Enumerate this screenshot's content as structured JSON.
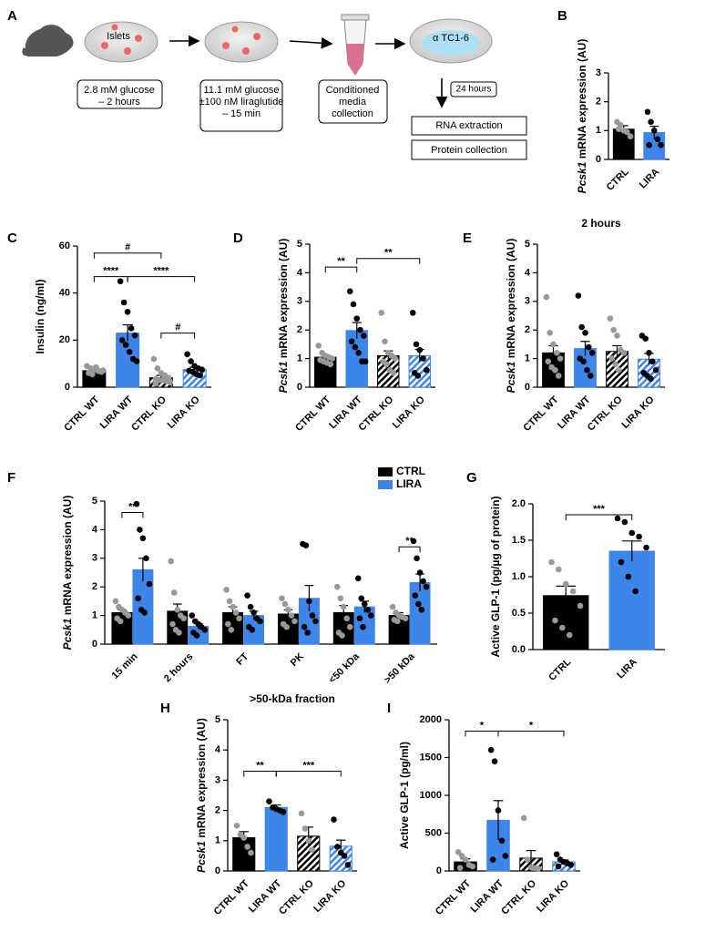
{
  "diagram": {
    "label": "A",
    "dish1": "Islets",
    "step1": [
      "2.8 mM glucose",
      "– 2 hours"
    ],
    "step2": [
      "11.1 mM glucose",
      "±100 nM liraglutide",
      "– 15 min"
    ],
    "step3": [
      "Conditioned",
      "media",
      "collection"
    ],
    "dish3": "α TC1-6",
    "wait": "24 hours",
    "out": [
      "RNA extraction",
      "Protein collection"
    ]
  },
  "chart_data": [
    {
      "type": "bar",
      "label": "B",
      "ylabel_italic": "Pcsk1",
      "ylabel": "mRNA expression (AU)",
      "categories": [
        "CTRL",
        "LIRA"
      ],
      "values": [
        1.05,
        0.93
      ],
      "errors": [
        0.12,
        0.22
      ],
      "colors": [
        "#000000",
        "#3d85e8"
      ],
      "hatched": [
        false,
        false
      ],
      "point_colors": [
        "#999999",
        "#000000"
      ],
      "points": [
        [
          1.3,
          1.2,
          1.0,
          0.95,
          0.8,
          1.05
        ],
        [
          1.65,
          1.3,
          1.0,
          0.7,
          0.5,
          0.5
        ]
      ],
      "ylim": [
        0,
        3
      ],
      "yticks": [
        0,
        1,
        2,
        3
      ],
      "annotations": []
    },
    {
      "type": "bar",
      "label": "C",
      "ylabel": "Insulin (ng/ml)",
      "categories": [
        "CTRL WT",
        "LIRA WT",
        "CTRL KO",
        "LIRA KO"
      ],
      "values": [
        7,
        23,
        4,
        7.5
      ],
      "errors": [
        1,
        3.5,
        1,
        1
      ],
      "colors": [
        "#000000",
        "#3d85e8",
        "#000000",
        "#3d85e8"
      ],
      "hatched": [
        false,
        false,
        true,
        true
      ],
      "point_colors": [
        "#999999",
        "#000000",
        "#999999",
        "#000000"
      ],
      "points": [
        [
          9,
          8,
          7.5,
          7,
          6.5,
          6,
          5.5,
          8.5,
          6.8,
          7.2
        ],
        [
          45,
          36,
          32,
          25,
          22,
          20,
          18,
          15,
          12,
          11
        ],
        [
          12,
          8,
          6,
          5,
          4,
          3.5,
          3,
          3,
          2.5,
          2,
          1.5
        ],
        [
          14,
          11,
          9,
          8,
          7.5,
          7,
          6.5,
          5.5,
          5
        ]
      ],
      "ylim": [
        0,
        60
      ],
      "yticks": [
        0,
        20,
        40,
        60
      ],
      "annotations": [
        {
          "from": 0,
          "to": 2,
          "y": 57,
          "text": "#"
        },
        {
          "from": 0,
          "to": 1,
          "y": 47,
          "text": "****"
        },
        {
          "from": 1,
          "to": 3,
          "y": 47,
          "text": "****"
        },
        {
          "from": 2,
          "to": 3,
          "y": 23,
          "text": "#"
        }
      ]
    },
    {
      "type": "bar",
      "label": "D",
      "ylabel_italic": "Pcsk1",
      "ylabel": "mRNA expression (AU)",
      "categories": [
        "CTRL WT",
        "LIRA WT",
        "CTRL KO",
        "LIRA KO"
      ],
      "values": [
        1.05,
        1.98,
        1.1,
        1.1
      ],
      "errors": [
        0.08,
        0.28,
        0.17,
        0.22
      ],
      "colors": [
        "#000000",
        "#3d85e8",
        "#000000",
        "#3d85e8"
      ],
      "hatched": [
        false,
        false,
        true,
        true
      ],
      "point_colors": [
        "#999999",
        "#000000",
        "#999999",
        "#000000"
      ],
      "points": [
        [
          1.45,
          1.2,
          1.1,
          1.05,
          1,
          0.95,
          0.9,
          0.85,
          0.8
        ],
        [
          3.35,
          2.9,
          2.4,
          2.0,
          1.8,
          1.6,
          1.4,
          1.2,
          0.9,
          0.9
        ],
        [
          2.6,
          1.6,
          1.2,
          1.1,
          1.0,
          0.9,
          0.8,
          0.6,
          0.5
        ],
        [
          2.6,
          1.5,
          1.3,
          1.0,
          0.6,
          0.5,
          0.4
        ]
      ],
      "ylim": [
        0,
        5
      ],
      "yticks": [
        0,
        1,
        2,
        3,
        4,
        5
      ],
      "annotations": [
        {
          "from": 0,
          "to": 1,
          "y": 4.2,
          "text": "**"
        },
        {
          "from": 1,
          "to": 3,
          "y": 4.5,
          "text": "**"
        }
      ]
    },
    {
      "type": "bar",
      "label": "E",
      "title": "2 hours",
      "ylabel_italic": "Pcsk1",
      "ylabel": "mRNA expression (AU)",
      "categories": [
        "CTRL WT",
        "LIRA WT",
        "CTRL KO",
        "LIRA KO"
      ],
      "values": [
        1.2,
        1.35,
        1.25,
        0.98
      ],
      "errors": [
        0.25,
        0.25,
        0.2,
        0.2
      ],
      "colors": [
        "#000000",
        "#3d85e8",
        "#000000",
        "#3d85e8"
      ],
      "hatched": [
        false,
        false,
        true,
        true
      ],
      "point_colors": [
        "#999999",
        "#000000",
        "#999999",
        "#000000"
      ],
      "points": [
        [
          3.15,
          1.9,
          1.5,
          1.2,
          1.0,
          0.9,
          0.7,
          0.6,
          0.4
        ],
        [
          3.2,
          2.1,
          1.9,
          1.4,
          1.2,
          1.0,
          0.9,
          0.6,
          0.4
        ],
        [
          2.4,
          2.0,
          1.8,
          1.3,
          1.2,
          1.0,
          0.8,
          0.6
        ],
        [
          1.8,
          1.7,
          1.2,
          0.9,
          0.6,
          0.5,
          0.4,
          0.3
        ]
      ],
      "ylim": [
        0,
        5
      ],
      "yticks": [
        0,
        1,
        2,
        3,
        4,
        5
      ],
      "annotations": []
    },
    {
      "type": "grouped_bar",
      "label": "F",
      "ylabel_italic": "Pcsk1",
      "ylabel": "mRNA expression (AU)",
      "categories": [
        "15 min",
        "2 hours",
        "FT",
        "PK",
        "<50 kDa",
        ">50 kDa"
      ],
      "legend": "top-right",
      "series": [
        {
          "name": "CTRL",
          "color": "#000000",
          "point_color": "#999999",
          "values": [
            1.1,
            1.15,
            1.1,
            1.05,
            1.1,
            1.0
          ],
          "errors": [
            0.1,
            0.25,
            0.2,
            0.15,
            0.25,
            0.1
          ],
          "points": [
            [
              1.5,
              1.3,
              1.2,
              1.1,
              1.0,
              0.9,
              0.8
            ],
            [
              2.9,
              1.8,
              1.2,
              1.0,
              0.9,
              0.7,
              0.5,
              0.4
            ],
            [
              1.9,
              1.5,
              1.3,
              1.1,
              0.9,
              0.7,
              0.5
            ],
            [
              1.6,
              1.4,
              1.2,
              1.0,
              0.8,
              0.7,
              0.6
            ],
            [
              2.0,
              1.6,
              1.3,
              0.9,
              0.6,
              0.4,
              0.3
            ],
            [
              1.3,
              1.1,
              1.0,
              0.95,
              0.9,
              0.85,
              0.8
            ]
          ]
        },
        {
          "name": "LIRA",
          "color": "#3d85e8",
          "point_color": "#000000",
          "values": [
            2.6,
            0.62,
            1.0,
            1.6,
            1.3,
            2.15
          ],
          "errors": [
            0.4,
            0.1,
            0.15,
            0.45,
            0.2,
            0.3
          ],
          "points": [
            [
              4.9,
              4.0,
              3.7,
              3.0,
              2.1,
              1.6,
              1.2,
              1.1
            ],
            [
              1.0,
              0.8,
              0.7,
              0.6,
              0.5,
              0.4,
              0.3
            ],
            [
              1.7,
              1.3,
              1.1,
              0.9,
              0.8,
              0.6,
              0.5
            ],
            [
              3.5,
              3.45,
              1.5,
              1.0,
              0.8,
              0.6,
              0.4
            ],
            [
              2.3,
              1.6,
              1.4,
              1.2,
              1.0,
              0.9,
              0.6
            ],
            [
              3.6,
              3.0,
              2.5,
              2.2,
              2.0,
              1.7,
              1.4,
              1.2
            ]
          ]
        }
      ],
      "ylim": [
        0,
        5
      ],
      "yticks": [
        0,
        1,
        2,
        3,
        4,
        5
      ],
      "annotations": [
        {
          "group": 0,
          "y": 4.6,
          "text": "**"
        },
        {
          "group": 5,
          "y": 3.4,
          "text": "**"
        }
      ]
    },
    {
      "type": "bar",
      "label": "G",
      "ylabel": "Active GLP-1 (pg/µg of protein)",
      "categories": [
        "CTRL",
        "LIRA"
      ],
      "values": [
        0.74,
        1.35
      ],
      "errors": [
        0.13,
        0.14
      ],
      "colors": [
        "#000000",
        "#3d85e8"
      ],
      "hatched": [
        false,
        false
      ],
      "point_colors": [
        "#999999",
        "#000000"
      ],
      "points": [
        [
          1.2,
          1.1,
          0.9,
          0.8,
          0.6,
          0.4,
          0.3,
          0.2
        ],
        [
          1.8,
          1.75,
          1.6,
          1.55,
          1.4,
          1.2,
          1.0,
          0.8
        ]
      ],
      "ylim": [
        0,
        2
      ],
      "yticks": [
        {
          "value": 0,
          "label": "0.0"
        },
        {
          "value": 0.5,
          "label": "0.5"
        },
        {
          "value": 1,
          "label": "1.0"
        },
        {
          "value": 1.5,
          "label": "1.5"
        },
        {
          "value": 2,
          "label": "2.0"
        }
      ],
      "annotations": [
        {
          "from": 0,
          "to": 1,
          "y": 1.85,
          "text": "***"
        }
      ]
    },
    {
      "type": "bar",
      "label": "H",
      "title": ">50-kDa fraction",
      "ylabel_italic": "Pcsk1",
      "ylabel": "mRNA expression (AU)",
      "categories": [
        "CTRL WT",
        "LIRA WT",
        "CTRL KO",
        "LIRA KO"
      ],
      "values": [
        1.1,
        2.1,
        1.15,
        0.82
      ],
      "errors": [
        0.2,
        0.08,
        0.3,
        0.2
      ],
      "colors": [
        "#000000",
        "#3d85e8",
        "#000000",
        "#3d85e8"
      ],
      "hatched": [
        false,
        false,
        true,
        true
      ],
      "point_colors": [
        "#999999",
        "#000000",
        "#999999",
        "#000000"
      ],
      "points": [
        [
          1.5,
          1.2,
          1.1,
          0.8,
          0.6
        ],
        [
          2.3,
          2.1,
          2.05,
          2.0,
          1.95
        ],
        [
          1.9,
          1.4,
          1.0,
          0.7
        ],
        [
          1.7,
          0.8,
          0.6,
          0.5,
          0.2
        ]
      ],
      "ylim": [
        0,
        5
      ],
      "yticks": [
        0,
        1,
        2,
        3,
        4,
        5
      ],
      "annotations": [
        {
          "from": 0,
          "to": 1,
          "y": 3.3,
          "text": "**"
        },
        {
          "from": 1,
          "to": 3,
          "y": 3.3,
          "text": "***"
        }
      ]
    },
    {
      "type": "bar",
      "label": "I",
      "ylabel": "Active GLP-1 (pg/ml)",
      "categories": [
        "CTRL WT",
        "LIRA WT",
        "CTRL KO",
        "LIRA KO"
      ],
      "values": [
        120,
        670,
        170,
        120
      ],
      "errors": [
        40,
        260,
        100,
        25
      ],
      "colors": [
        "#000000",
        "#3d85e8",
        "#000000",
        "#3d85e8"
      ],
      "hatched": [
        false,
        false,
        true,
        true
      ],
      "point_colors": [
        "#999999",
        "#000000",
        "#999999",
        "#000000"
      ],
      "points": [
        [
          250,
          200,
          150,
          80,
          60,
          40
        ],
        [
          1600,
          1450,
          800,
          400,
          200,
          150
        ],
        [
          700,
          150,
          50,
          40,
          30
        ],
        [
          220,
          150,
          120,
          100,
          80,
          60
        ]
      ],
      "ylim": [
        0,
        2000
      ],
      "yticks": [
        0,
        500,
        1000,
        1500,
        2000
      ],
      "annotations": [
        {
          "from": 0,
          "to": 1,
          "y": 1850,
          "text": "*"
        },
        {
          "from": 1,
          "to": 3,
          "y": 1850,
          "text": "*"
        }
      ]
    }
  ]
}
